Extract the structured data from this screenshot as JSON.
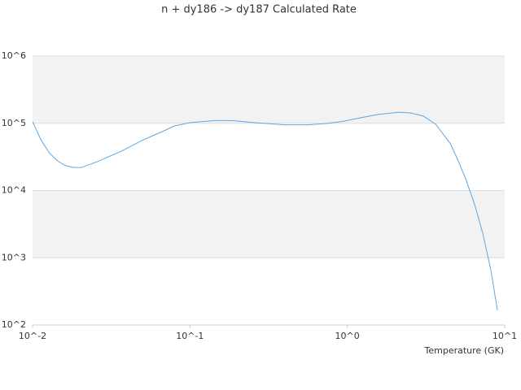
{
  "chart_data": {
    "type": "line",
    "title": "n + dy186 -> dy187 Calculated Rate",
    "x_label": "Temperature (GK)",
    "x_scale": "log",
    "y_scale": "log",
    "grid": true,
    "xlim": [
      0.01,
      10
    ],
    "xticks": [
      {
        "value": 0.01,
        "label": "10^-2"
      },
      {
        "value": 0.1,
        "label": "10^-1"
      },
      {
        "value": 1,
        "label": "10^0"
      },
      {
        "value": 10,
        "label": "10^1"
      }
    ],
    "ylim": [
      100,
      1000000
    ],
    "yticks": [
      {
        "value": 100,
        "label": "10^2"
      },
      {
        "value": 1000,
        "label": "10^3"
      },
      {
        "value": 10000,
        "label": "10^4"
      },
      {
        "value": 100000,
        "label": "10^5"
      },
      {
        "value": 1000000,
        "label": "10^6"
      }
    ],
    "x": [
      0.01,
      0.0113,
      0.0127,
      0.0143,
      0.0161,
      0.0182,
      0.0204,
      0.0259,
      0.0371,
      0.0499,
      0.0673,
      0.0804,
      0.102,
      0.146,
      0.185,
      0.249,
      0.401,
      0.56,
      0.727,
      0.921,
      1.24,
      1.58,
      2.13,
      2.55,
      3.04,
      3.64,
      4.51,
      5.02,
      5.65,
      6.44,
      7.26,
      8.17,
      8.99
    ],
    "series": [
      {
        "color": "#5ea6e0",
        "values": [
          106000,
          57000,
          37000,
          28000,
          23500,
          22000,
          22000,
          27000,
          39000,
          56000,
          76000,
          92000,
          103000,
          110000,
          110000,
          103000,
          95000,
          95000,
          99000,
          106000,
          122000,
          136000,
          146000,
          142000,
          128000,
          97000,
          50000,
          29000,
          15000,
          6200,
          2300,
          650,
          166
        ]
      }
    ]
  }
}
